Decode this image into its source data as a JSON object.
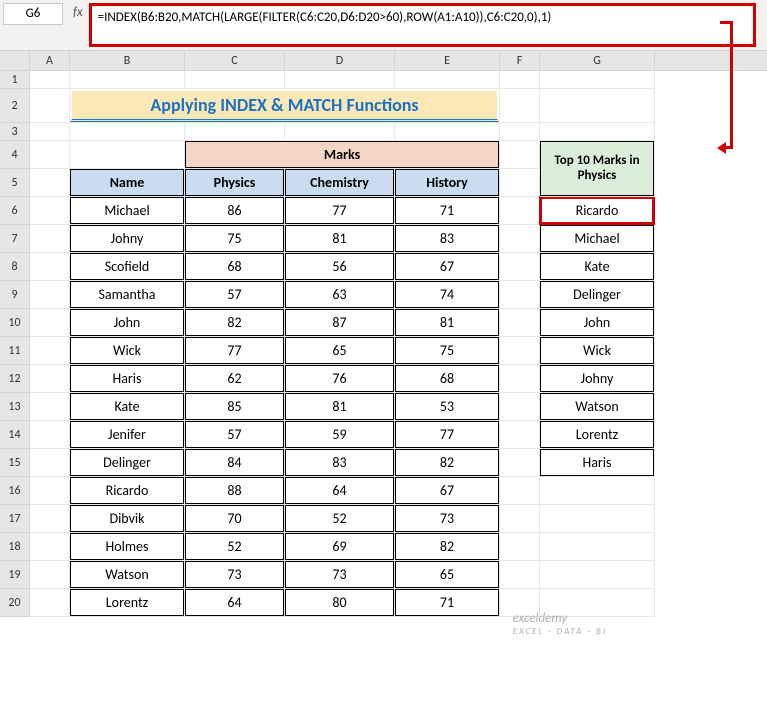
{
  "namebox": "G6",
  "formula": "=INDEX(B6:B20,MATCH(LARGE(FILTER(C6:C20,D6:D20>60),ROW(A1:A10)),C6:C20,0),1)",
  "columns": {
    "A": 40,
    "B": 115,
    "C": 100,
    "D": 110,
    "E": 105,
    "F": 40,
    "G": 115
  },
  "colLabels": [
    "A",
    "B",
    "C",
    "D",
    "E",
    "F",
    "G"
  ],
  "rowLabels": [
    "1",
    "2",
    "3",
    "4",
    "5",
    "6",
    "7",
    "8",
    "9",
    "10",
    "11",
    "12",
    "13",
    "14",
    "15",
    "16",
    "17",
    "18",
    "19",
    "20"
  ],
  "title": "Applying INDEX & MATCH Functions",
  "marksHeader": "Marks",
  "headers": {
    "name": "Name",
    "physics": "Physics",
    "chemistry": "Chemistry",
    "history": "History"
  },
  "top10Header": "Top 10 Marks in Physics",
  "data": [
    {
      "name": "Michael",
      "physics": 86,
      "chemistry": 77,
      "history": 71
    },
    {
      "name": "Johny",
      "physics": 75,
      "chemistry": 81,
      "history": 83
    },
    {
      "name": "Scofield",
      "physics": 68,
      "chemistry": 56,
      "history": 67
    },
    {
      "name": "Samantha",
      "physics": 57,
      "chemistry": 63,
      "history": 74
    },
    {
      "name": "John",
      "physics": 82,
      "chemistry": 87,
      "history": 81
    },
    {
      "name": "Wick",
      "physics": 77,
      "chemistry": 65,
      "history": 75
    },
    {
      "name": "Haris",
      "physics": 62,
      "chemistry": 76,
      "history": 68
    },
    {
      "name": "Kate",
      "physics": 85,
      "chemistry": 81,
      "history": 53
    },
    {
      "name": "Jenifer",
      "physics": 57,
      "chemistry": 59,
      "history": 77
    },
    {
      "name": "Delinger",
      "physics": 84,
      "chemistry": 83,
      "history": 82
    },
    {
      "name": "Ricardo",
      "physics": 88,
      "chemistry": 64,
      "history": 67
    },
    {
      "name": "Dibvik",
      "physics": 70,
      "chemistry": 52,
      "history": 73
    },
    {
      "name": "Holmes",
      "physics": 52,
      "chemistry": 69,
      "history": 82
    },
    {
      "name": "Watson",
      "physics": 73,
      "chemistry": 73,
      "history": 65
    },
    {
      "name": "Lorentz",
      "physics": 64,
      "chemistry": 80,
      "history": 71
    }
  ],
  "results": [
    "Ricardo",
    "Michael",
    "Kate",
    "Delinger",
    "John",
    "Wick",
    "Johny",
    "Watson",
    "Lorentz",
    "Haris"
  ],
  "watermark": {
    "main": "exceldemy",
    "sub": "EXCEL · DATA · BI"
  },
  "colors": {
    "titleBg": "#fce8b6",
    "titleText": "#1a73c4",
    "marksBg": "#f5d6c6",
    "nameBg": "#c9dcf0",
    "top10Bg": "#dbeeda",
    "highlight": "#d00000",
    "border": "#000000"
  }
}
